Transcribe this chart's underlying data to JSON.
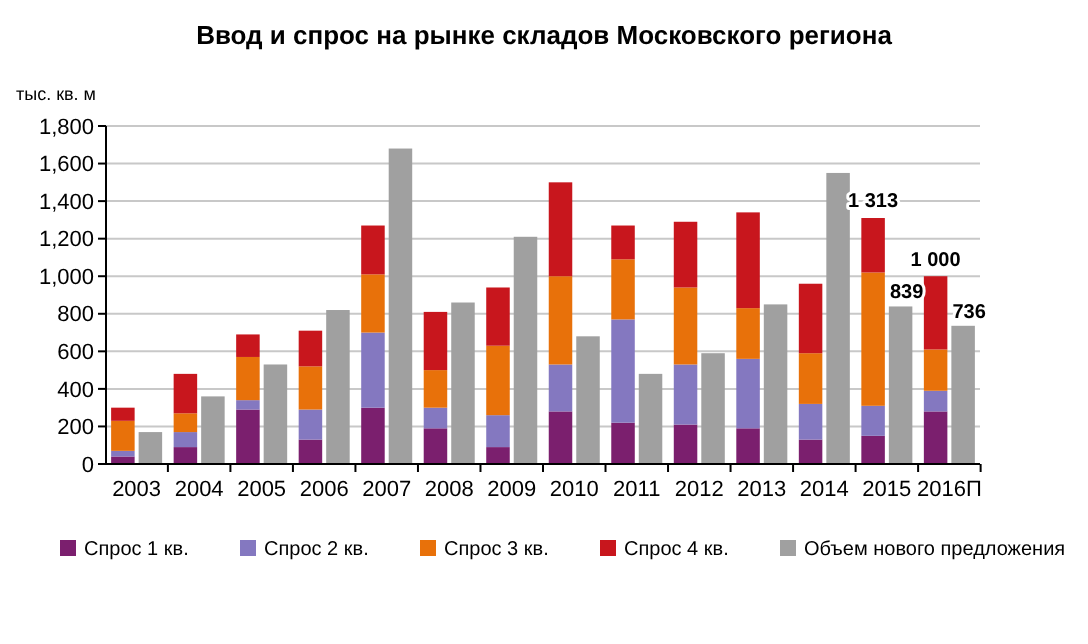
{
  "chart_data": {
    "type": "bar",
    "title": "Ввод и спрос на рынке складов Московского региона",
    "ylabel": "тыс. кв. м",
    "categories": [
      "2003",
      "2004",
      "2005",
      "2006",
      "2007",
      "2008",
      "2009",
      "2010",
      "2011",
      "2012",
      "2013",
      "2014",
      "2015",
      "2016П"
    ],
    "stacked": true,
    "series": [
      {
        "name": "Спрос 1 кв.",
        "color": "#7b1f6e",
        "values": [
          40,
          90,
          290,
          130,
          300,
          190,
          90,
          280,
          220,
          210,
          190,
          130,
          150,
          280
        ]
      },
      {
        "name": "Спрос 2 кв.",
        "color": "#8478c0",
        "values": [
          30,
          80,
          50,
          160,
          400,
          110,
          170,
          250,
          550,
          320,
          370,
          190,
          160,
          110
        ]
      },
      {
        "name": "Спрос 3 кв.",
        "color": "#e8710a",
        "values": [
          160,
          100,
          230,
          230,
          310,
          200,
          370,
          470,
          320,
          410,
          270,
          270,
          710,
          220
        ]
      },
      {
        "name": "Спрос 4 кв.",
        "color": "#c8161d",
        "values": [
          70,
          210,
          120,
          190,
          260,
          310,
          310,
          500,
          180,
          350,
          510,
          370,
          290,
          390
        ]
      },
      {
        "name": "Объем нового предложения",
        "color": "#a0a0a0",
        "axis": "y2",
        "values": [
          170,
          360,
          530,
          820,
          1680,
          860,
          1210,
          680,
          480,
          590,
          850,
          1550,
          839,
          736
        ],
        "value_labels": [
          null,
          null,
          null,
          null,
          null,
          null,
          null,
          null,
          null,
          null,
          null,
          null,
          "839",
          "736"
        ]
      }
    ],
    "annotations": [
      {
        "text": "1 313",
        "x": "2015",
        "y": 1313
      },
      {
        "text": "1 000",
        "x": "2016П",
        "y": 1000
      }
    ],
    "ylim": [
      0,
      1800
    ],
    "y2lim": [
      0,
      1800
    ],
    "yticks": [
      0,
      200,
      400,
      600,
      800,
      {
        "value": 1000,
        "label": "1,000"
      },
      {
        "value": 1200,
        "label": "1,200"
      },
      {
        "value": 1400,
        "label": "1,400"
      },
      {
        "value": 1600,
        "label": "1,600"
      },
      {
        "value": 1800,
        "label": "1,800"
      }
    ],
    "grid": "y",
    "legend": "bottom"
  }
}
